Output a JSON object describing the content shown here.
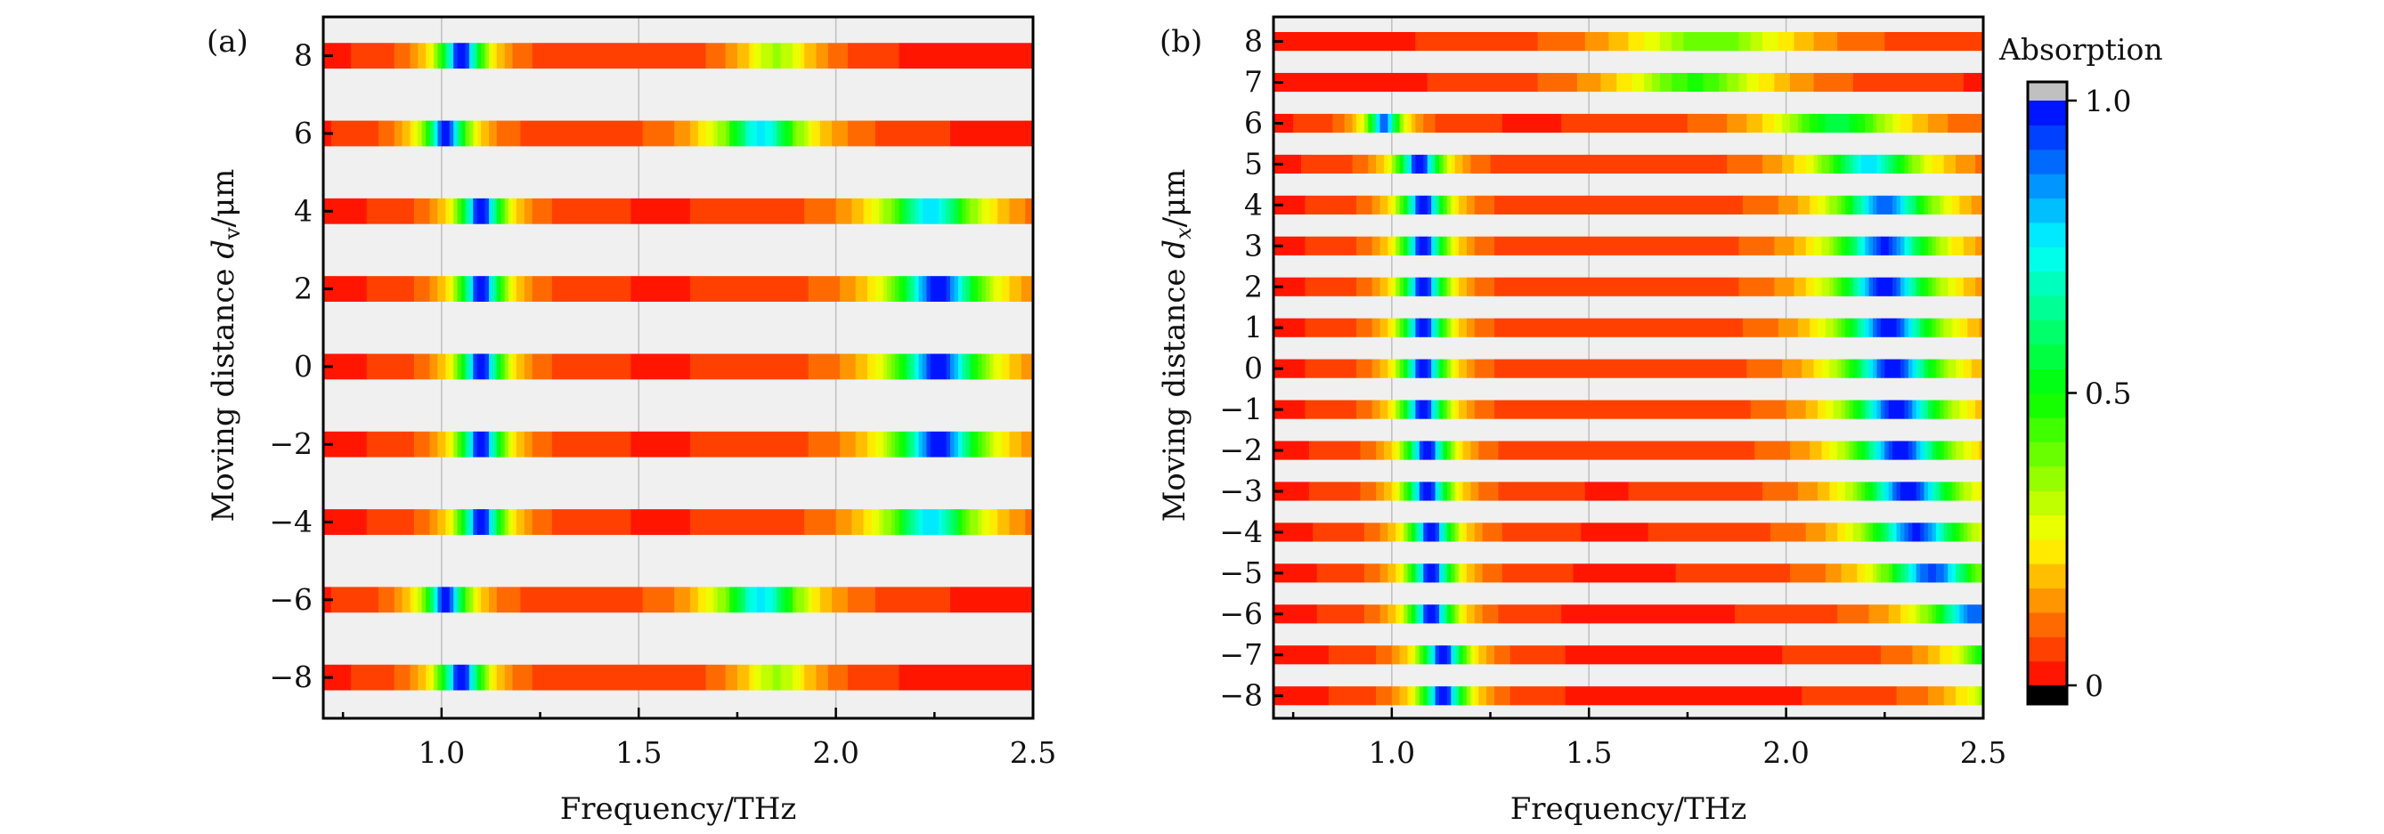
{
  "chart_data": [
    {
      "type": "heatmap",
      "panel_label": "(a)",
      "xlabel": "Frequency/THz",
      "ylabel_prefix": "Moving distance ",
      "ylabel_var": "d",
      "ylabel_sub": "v",
      "ylabel_suffix": "/μm",
      "xlim": [
        0.7,
        2.5
      ],
      "ylim": [
        -9.05,
        9.0
      ],
      "xticks": [
        1.0,
        1.5,
        2.0,
        2.5
      ],
      "xtick_labels": [
        "1.0",
        "1.5",
        "2.0",
        "2.5"
      ],
      "x_minor_ticks": [
        0.75,
        1.25,
        1.75,
        2.25
      ],
      "yticks": [
        8,
        6,
        4,
        2,
        0,
        -2,
        -4,
        -6,
        -8
      ],
      "ytick_labels": [
        "8",
        "6",
        "4",
        "2",
        "0",
        "−2",
        "−4",
        "−6",
        "−8"
      ],
      "grid": "vertical",
      "band_half_height": 0.33,
      "rows": [
        {
          "y": 8,
          "peaks": [
            {
              "f": 1.05,
              "a": 1.0,
              "w": 0.045
            },
            {
              "f": 1.85,
              "a": 0.32,
              "w": 0.09
            }
          ]
        },
        {
          "y": 6,
          "peaks": [
            {
              "f": 1.01,
              "a": 0.95,
              "w": 0.045
            },
            {
              "f": 1.81,
              "a": 0.75,
              "w": 0.09
            }
          ]
        },
        {
          "y": 4,
          "peaks": [
            {
              "f": 1.1,
              "a": 1.0,
              "w": 0.045
            },
            {
              "f": 2.24,
              "a": 0.75,
              "w": 0.1
            }
          ]
        },
        {
          "y": 2,
          "peaks": [
            {
              "f": 1.1,
              "a": 1.0,
              "w": 0.045
            },
            {
              "f": 2.26,
              "a": 0.97,
              "w": 0.09
            }
          ]
        },
        {
          "y": 0,
          "peaks": [
            {
              "f": 1.1,
              "a": 1.0,
              "w": 0.045
            },
            {
              "f": 2.26,
              "a": 0.97,
              "w": 0.09
            }
          ]
        },
        {
          "y": -2,
          "peaks": [
            {
              "f": 1.1,
              "a": 1.0,
              "w": 0.045
            },
            {
              "f": 2.26,
              "a": 0.97,
              "w": 0.09
            }
          ]
        },
        {
          "y": -4,
          "peaks": [
            {
              "f": 1.1,
              "a": 1.0,
              "w": 0.045
            },
            {
              "f": 2.24,
              "a": 0.75,
              "w": 0.1
            }
          ]
        },
        {
          "y": -6,
          "peaks": [
            {
              "f": 1.01,
              "a": 0.95,
              "w": 0.045
            },
            {
              "f": 1.81,
              "a": 0.75,
              "w": 0.09
            }
          ]
        },
        {
          "y": -8,
          "peaks": [
            {
              "f": 1.05,
              "a": 1.0,
              "w": 0.045
            },
            {
              "f": 1.85,
              "a": 0.32,
              "w": 0.09
            }
          ]
        }
      ]
    },
    {
      "type": "heatmap",
      "panel_label": "(b)",
      "xlabel": "Frequency/THz",
      "ylabel_prefix": "Moving distance ",
      "ylabel_var": "d",
      "ylabel_sub": "x",
      "ylabel_suffix": "/μm",
      "xlim": [
        0.7,
        2.5
      ],
      "ylim": [
        -8.55,
        8.6
      ],
      "xticks": [
        1.0,
        1.5,
        2.0,
        2.5
      ],
      "xtick_labels": [
        "1.0",
        "1.5",
        "2.0",
        "2.5"
      ],
      "x_minor_ticks": [
        0.75,
        1.25,
        1.75,
        2.25
      ],
      "yticks": [
        8,
        7,
        6,
        5,
        4,
        3,
        2,
        1,
        0,
        -1,
        -2,
        -3,
        -4,
        -5,
        -6,
        -7,
        -8
      ],
      "ytick_labels": [
        "8",
        "7",
        "6",
        "5",
        "4",
        "3",
        "2",
        "1",
        "0",
        "−1",
        "−2",
        "−3",
        "−4",
        "−5",
        "−6",
        "−7",
        "−8"
      ],
      "grid": "vertical",
      "band_half_height": 0.23,
      "rows": [
        {
          "y": 8,
          "peaks": [
            {
              "f": 1.81,
              "a": 0.4,
              "w": 0.2
            }
          ]
        },
        {
          "y": 7,
          "peaks": [
            {
              "f": 1.77,
              "a": 0.45,
              "w": 0.17
            }
          ]
        },
        {
          "y": 6,
          "peaks": [
            {
              "f": 0.98,
              "a": 0.9,
              "w": 0.035
            },
            {
              "f": 2.13,
              "a": 0.55,
              "w": 0.14
            }
          ]
        },
        {
          "y": 5,
          "peaks": [
            {
              "f": 1.07,
              "a": 1.0,
              "w": 0.045
            },
            {
              "f": 2.21,
              "a": 0.75,
              "w": 0.11
            }
          ]
        },
        {
          "y": 4,
          "peaks": [
            {
              "f": 1.08,
              "a": 1.0,
              "w": 0.045
            },
            {
              "f": 2.25,
              "a": 0.9,
              "w": 0.1
            }
          ]
        },
        {
          "y": 3,
          "peaks": [
            {
              "f": 1.08,
              "a": 1.0,
              "w": 0.045
            },
            {
              "f": 2.25,
              "a": 0.95,
              "w": 0.1
            }
          ]
        },
        {
          "y": 2,
          "peaks": [
            {
              "f": 1.08,
              "a": 1.0,
              "w": 0.045
            },
            {
              "f": 2.25,
              "a": 0.97,
              "w": 0.1
            }
          ]
        },
        {
          "y": 1,
          "peaks": [
            {
              "f": 1.08,
              "a": 1.0,
              "w": 0.045
            },
            {
              "f": 2.26,
              "a": 0.97,
              "w": 0.1
            }
          ]
        },
        {
          "y": 0,
          "peaks": [
            {
              "f": 1.08,
              "a": 1.0,
              "w": 0.045
            },
            {
              "f": 2.27,
              "a": 0.97,
              "w": 0.1
            }
          ]
        },
        {
          "y": -1,
          "peaks": [
            {
              "f": 1.08,
              "a": 1.0,
              "w": 0.045
            },
            {
              "f": 2.28,
              "a": 0.97,
              "w": 0.1
            }
          ]
        },
        {
          "y": -2,
          "peaks": [
            {
              "f": 1.09,
              "a": 1.0,
              "w": 0.045
            },
            {
              "f": 2.29,
              "a": 0.97,
              "w": 0.1
            }
          ]
        },
        {
          "y": -3,
          "peaks": [
            {
              "f": 1.09,
              "a": 1.0,
              "w": 0.045
            },
            {
              "f": 2.31,
              "a": 0.97,
              "w": 0.1
            }
          ]
        },
        {
          "y": -4,
          "peaks": [
            {
              "f": 1.1,
              "a": 1.0,
              "w": 0.045
            },
            {
              "f": 2.33,
              "a": 0.95,
              "w": 0.1
            }
          ]
        },
        {
          "y": -5,
          "peaks": [
            {
              "f": 1.1,
              "a": 1.0,
              "w": 0.045
            },
            {
              "f": 2.37,
              "a": 0.92,
              "w": 0.1
            }
          ]
        },
        {
          "y": -6,
          "peaks": [
            {
              "f": 1.1,
              "a": 1.0,
              "w": 0.045
            },
            {
              "f": 2.48,
              "a": 0.9,
              "w": 0.1
            }
          ]
        },
        {
          "y": -7,
          "peaks": [
            {
              "f": 1.13,
              "a": 1.0,
              "w": 0.045
            },
            {
              "f": 2.58,
              "a": 0.85,
              "w": 0.1
            }
          ]
        },
        {
          "y": -8,
          "peaks": [
            {
              "f": 1.13,
              "a": 1.0,
              "w": 0.045
            },
            {
              "f": 2.62,
              "a": 0.85,
              "w": 0.1
            }
          ]
        }
      ]
    }
  ],
  "colorbar": {
    "title": "Absorption",
    "range": [
      0,
      1.0
    ],
    "ticks": [
      0,
      0.5,
      1.0
    ],
    "tick_labels": [
      "0",
      "0.5",
      "1.0"
    ],
    "levels": 24,
    "over_color": "#c0c0c0",
    "under_color": "#000000",
    "colormap": [
      "#ff0000",
      "#ffff00",
      "#00ff00",
      "#00ffff",
      "#0000ff"
    ]
  },
  "colors": {
    "plot_background": "#f0f0f0",
    "gridline": "#bfbfbf",
    "frame": "#000000"
  }
}
